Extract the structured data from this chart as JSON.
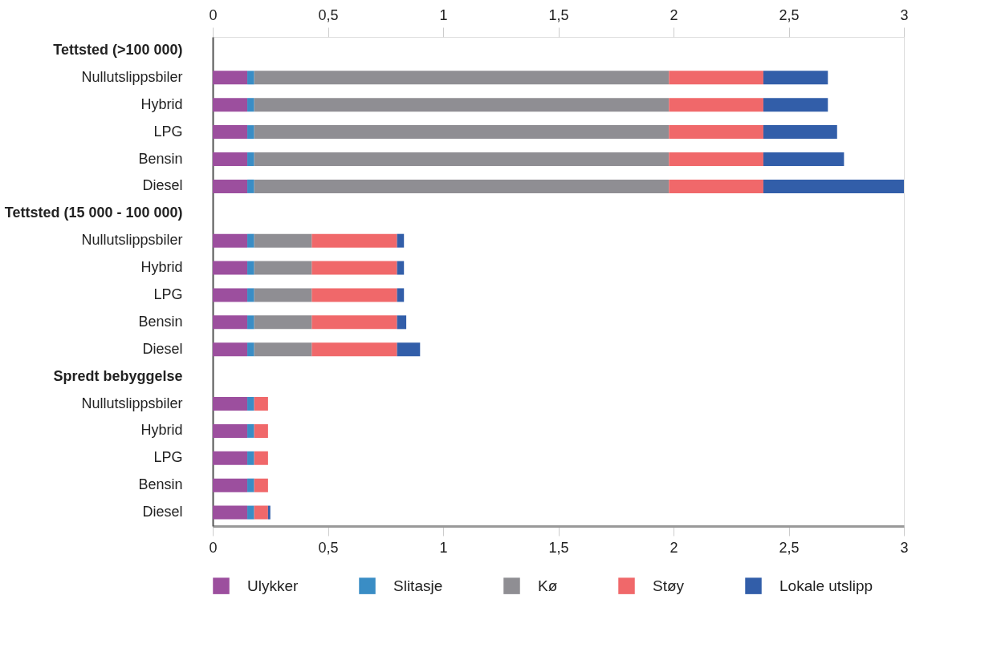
{
  "chart_data": {
    "type": "bar",
    "orientation": "horizontal",
    "stacked": true,
    "categories": [
      "Tettsted (>100 000)",
      "Nullutslippsbiler",
      "Hybrid",
      "LPG",
      "Bensin",
      "Diesel",
      "Tettsted (15 000 - 100 000)",
      "Nullutslippsbiler",
      "Hybrid",
      "LPG",
      "Bensin",
      "Diesel",
      "Spredt bebyggelse",
      "Nullutslippsbiler",
      "Hybrid",
      "LPG",
      "Bensin",
      "Diesel"
    ],
    "series": [
      {
        "name": "Ulykker",
        "color": "#9c4f9e",
        "values": [
          null,
          0.15,
          0.15,
          0.15,
          0.15,
          0.15,
          null,
          0.15,
          0.15,
          0.15,
          0.15,
          0.15,
          null,
          0.15,
          0.15,
          0.15,
          0.15,
          0.15
        ]
      },
      {
        "name": "Slitasje",
        "color": "#3a8dc5",
        "values": [
          null,
          0.03,
          0.03,
          0.03,
          0.03,
          0.03,
          null,
          0.03,
          0.03,
          0.03,
          0.03,
          0.03,
          null,
          0.03,
          0.03,
          0.03,
          0.03,
          0.03
        ]
      },
      {
        "name": "Kø",
        "color": "#8f8e93",
        "values": [
          null,
          1.8,
          1.8,
          1.8,
          1.8,
          1.8,
          null,
          0.25,
          0.25,
          0.25,
          0.25,
          0.25,
          null,
          0,
          0,
          0,
          0,
          0
        ]
      },
      {
        "name": "Støy",
        "color": "#f0686a",
        "values": [
          null,
          0.41,
          0.41,
          0.41,
          0.41,
          0.41,
          null,
          0.37,
          0.37,
          0.37,
          0.37,
          0.37,
          null,
          0.06,
          0.06,
          0.06,
          0.06,
          0.06
        ]
      },
      {
        "name": "Lokale utslipp",
        "color": "#325ea9",
        "values": [
          null,
          0.28,
          0.28,
          0.32,
          0.35,
          0.61,
          null,
          0.03,
          0.03,
          0.03,
          0.04,
          0.1,
          null,
          0,
          0,
          0,
          0,
          0.01
        ]
      }
    ],
    "xlim": [
      0,
      3
    ],
    "xticks": [
      0,
      {
        "value": 0.5,
        "label": "0,5"
      },
      1,
      {
        "value": 1.5,
        "label": "1,5"
      },
      2,
      {
        "value": 2.5,
        "label": "2,5"
      },
      3
    ],
    "x2lim": [
      0,
      3
    ],
    "x2ticks": [
      0,
      {
        "value": 0.5,
        "label": "0,5"
      },
      1,
      {
        "value": 1.5,
        "label": "1,5"
      },
      2,
      {
        "value": 2.5,
        "label": "2,5"
      },
      3
    ],
    "grid": false,
    "legend": "bottom"
  }
}
